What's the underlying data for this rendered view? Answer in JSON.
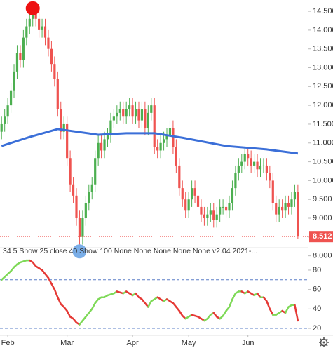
{
  "chart_data": [
    {
      "type": "candlestick",
      "xlim": [
        -0.5,
        97.5
      ],
      "xticks": [
        {
          "value": 2,
          "label": "Feb"
        },
        {
          "value": 21,
          "label": "Mar"
        },
        {
          "value": 42,
          "label": "Apr"
        },
        {
          "value": 60,
          "label": "May"
        },
        {
          "value": 79,
          "label": "Jun"
        }
      ],
      "ylim": [
        7.9,
        14.8
      ],
      "yticks": [
        {
          "value": 8.0,
          "label": "8.000"
        },
        {
          "value": 8.5,
          "label": "8.500"
        },
        {
          "value": 9.0,
          "label": "9.000"
        },
        {
          "value": 9.5,
          "label": "9.500"
        },
        {
          "value": 10.0,
          "label": "10.000"
        },
        {
          "value": 10.5,
          "label": "10.500"
        },
        {
          "value": 11.0,
          "label": "11.000"
        },
        {
          "value": 11.5,
          "label": "11.500"
        },
        {
          "value": 12.0,
          "label": "12.000"
        },
        {
          "value": 12.5,
          "label": "12.500"
        },
        {
          "value": 13.0,
          "label": "13.000"
        },
        {
          "value": 13.5,
          "label": "13.500"
        },
        {
          "value": 14.0,
          "label": "14.000"
        },
        {
          "value": 14.5,
          "label": "14.500"
        }
      ],
      "up_color": "#4caf50",
      "down_color": "#ef5350",
      "open": [
        11.3,
        11.5,
        11.7,
        12.0,
        12.4,
        12.9,
        13.4,
        13.2,
        13.8,
        14.1,
        14.3,
        14.6,
        14.3,
        14.0,
        14.1,
        13.8,
        13.5,
        13.1,
        12.7,
        11.9,
        11.3,
        11.5,
        10.6,
        9.9,
        9.6,
        9.0,
        8.5,
        9.0,
        9.4,
        9.7,
        9.9,
        10.6,
        11.0,
        10.8,
        11.1,
        11.2,
        11.6,
        11.7,
        11.8,
        11.9,
        11.7,
        11.9,
        12.0,
        11.7,
        11.9,
        11.6,
        11.9,
        11.4,
        11.8,
        12.0,
        10.9,
        10.8,
        11.0,
        11.1,
        11.2,
        11.4,
        10.9,
        10.4,
        9.8,
        9.5,
        9.2,
        9.5,
        9.8,
        9.6,
        9.3,
        9.1,
        9.0,
        9.1,
        9.2,
        8.95,
        9.1,
        9.3,
        9.3,
        9.2,
        9.4,
        9.8,
        10.2,
        10.4,
        10.5,
        10.7,
        10.6,
        10.4,
        10.5,
        10.3,
        10.4,
        10.4,
        10.2,
        10.0,
        9.4,
        9.1,
        9.3,
        9.2,
        9.4,
        9.3,
        9.5,
        9.7
      ],
      "high": [
        11.7,
        11.9,
        12.2,
        12.6,
        13.1,
        13.6,
        13.6,
        14.0,
        14.3,
        14.5,
        14.7,
        14.7,
        14.5,
        14.3,
        14.3,
        14.0,
        13.7,
        13.3,
        12.9,
        12.1,
        11.7,
        11.7,
        10.8,
        10.1,
        9.8,
        9.2,
        9.2,
        9.6,
        9.9,
        10.1,
        10.8,
        11.2,
        11.2,
        11.3,
        11.4,
        11.8,
        11.9,
        12.0,
        12.1,
        12.1,
        12.1,
        12.2,
        12.2,
        12.1,
        12.1,
        12.1,
        12.1,
        12.0,
        12.2,
        12.2,
        11.1,
        11.2,
        11.3,
        11.4,
        11.6,
        11.6,
        11.1,
        10.6,
        10.0,
        9.7,
        9.7,
        10.0,
        10.0,
        9.8,
        9.5,
        9.3,
        9.3,
        9.4,
        9.4,
        9.3,
        9.5,
        9.5,
        9.5,
        9.6,
        10.0,
        10.4,
        10.6,
        10.7,
        10.9,
        10.9,
        10.8,
        10.7,
        10.7,
        10.6,
        10.6,
        10.6,
        10.4,
        10.2,
        9.6,
        9.5,
        9.5,
        9.6,
        9.6,
        9.7,
        9.9,
        9.9
      ],
      "low": [
        11.1,
        11.3,
        11.5,
        11.8,
        12.2,
        12.7,
        13.0,
        13.0,
        13.6,
        13.9,
        14.1,
        14.1,
        13.8,
        13.8,
        13.6,
        13.3,
        12.9,
        12.5,
        11.7,
        11.1,
        11.1,
        10.4,
        9.7,
        9.4,
        8.8,
        8.1,
        8.3,
        8.8,
        9.2,
        9.5,
        9.7,
        10.4,
        10.6,
        10.6,
        10.9,
        11.0,
        11.4,
        11.5,
        11.6,
        11.5,
        11.5,
        11.7,
        11.5,
        11.5,
        11.4,
        11.4,
        11.2,
        11.2,
        11.6,
        10.7,
        10.6,
        10.6,
        10.8,
        10.9,
        11.0,
        10.7,
        10.2,
        9.6,
        9.3,
        9.0,
        9.0,
        9.3,
        9.4,
        9.1,
        8.9,
        8.8,
        8.8,
        8.9,
        8.75,
        8.75,
        8.9,
        9.1,
        9.0,
        9.0,
        9.2,
        9.6,
        10.0,
        10.2,
        10.3,
        10.4,
        10.2,
        10.2,
        10.1,
        10.1,
        10.2,
        10.0,
        9.8,
        9.2,
        8.9,
        8.9,
        9.0,
        9.0,
        9.1,
        9.1,
        9.3,
        8.45
      ],
      "close": [
        11.5,
        11.7,
        12.0,
        12.4,
        12.9,
        13.4,
        13.2,
        13.8,
        14.1,
        14.3,
        14.6,
        14.3,
        14.0,
        14.1,
        13.8,
        13.5,
        13.1,
        12.7,
        11.9,
        11.3,
        11.5,
        10.6,
        9.9,
        9.6,
        9.0,
        8.5,
        9.0,
        9.4,
        9.7,
        9.9,
        10.6,
        11.0,
        10.8,
        11.1,
        11.2,
        11.6,
        11.7,
        11.8,
        11.9,
        11.7,
        11.9,
        12.0,
        11.7,
        11.9,
        11.6,
        11.9,
        11.4,
        11.8,
        12.0,
        10.9,
        10.8,
        11.0,
        11.1,
        11.2,
        11.4,
        10.9,
        10.4,
        9.8,
        9.5,
        9.2,
        9.5,
        9.8,
        9.6,
        9.3,
        9.1,
        9.0,
        9.1,
        9.2,
        8.95,
        9.1,
        9.3,
        9.3,
        9.2,
        9.4,
        9.8,
        10.2,
        10.4,
        10.5,
        10.7,
        10.6,
        10.4,
        10.5,
        10.3,
        10.4,
        10.4,
        10.2,
        10.0,
        9.4,
        9.1,
        9.3,
        9.2,
        9.4,
        9.3,
        9.5,
        9.7,
        8.512
      ],
      "last_color": "#ef5350",
      "ma": {
        "color": "#3b6fd8",
        "x": [
          0,
          9,
          18,
          31,
          40,
          49,
          58,
          72,
          85,
          95
        ],
        "values": [
          10.92,
          11.16,
          11.37,
          11.22,
          11.26,
          11.26,
          11.14,
          10.92,
          10.83,
          10.72
        ]
      },
      "markers": [
        {
          "x": 10,
          "value": 14.58,
          "color": "#ee1111"
        },
        {
          "x": 25,
          "value": 8.12,
          "color": "#7aaee8"
        }
      ]
    },
    {
      "type": "oscillator",
      "title": "34 5 Show 25 close 40 Show 100 None None None None None v2.04 2021-...",
      "ylim": [
        12.8,
        93.7
      ],
      "yticks": [
        20,
        40,
        60,
        80
      ],
      "levels": [
        70,
        20
      ],
      "level_color": "#5b7fc7",
      "rise_color": "#7ed957",
      "fall_color": "#e53935",
      "values": [
        70,
        73,
        76,
        79,
        83,
        86,
        88,
        89,
        90,
        90,
        88,
        84,
        82,
        80,
        76,
        72,
        66,
        60,
        52,
        45,
        42,
        38,
        32,
        30,
        26,
        24,
        28,
        32,
        36,
        40,
        46,
        50,
        52,
        52,
        54,
        55,
        56,
        58,
        57,
        56,
        58,
        56,
        54,
        56,
        52,
        50,
        46,
        42,
        48,
        50,
        52,
        50,
        48,
        50,
        48,
        46,
        42,
        38,
        33,
        30,
        32,
        34,
        33,
        32,
        30,
        28,
        30,
        34,
        36,
        32,
        30,
        33,
        38,
        42,
        50,
        56,
        58,
        58,
        56,
        58,
        56,
        54,
        56,
        52,
        52,
        48,
        40,
        34,
        34,
        36,
        38,
        36,
        42,
        44,
        44,
        28
      ]
    }
  ]
}
